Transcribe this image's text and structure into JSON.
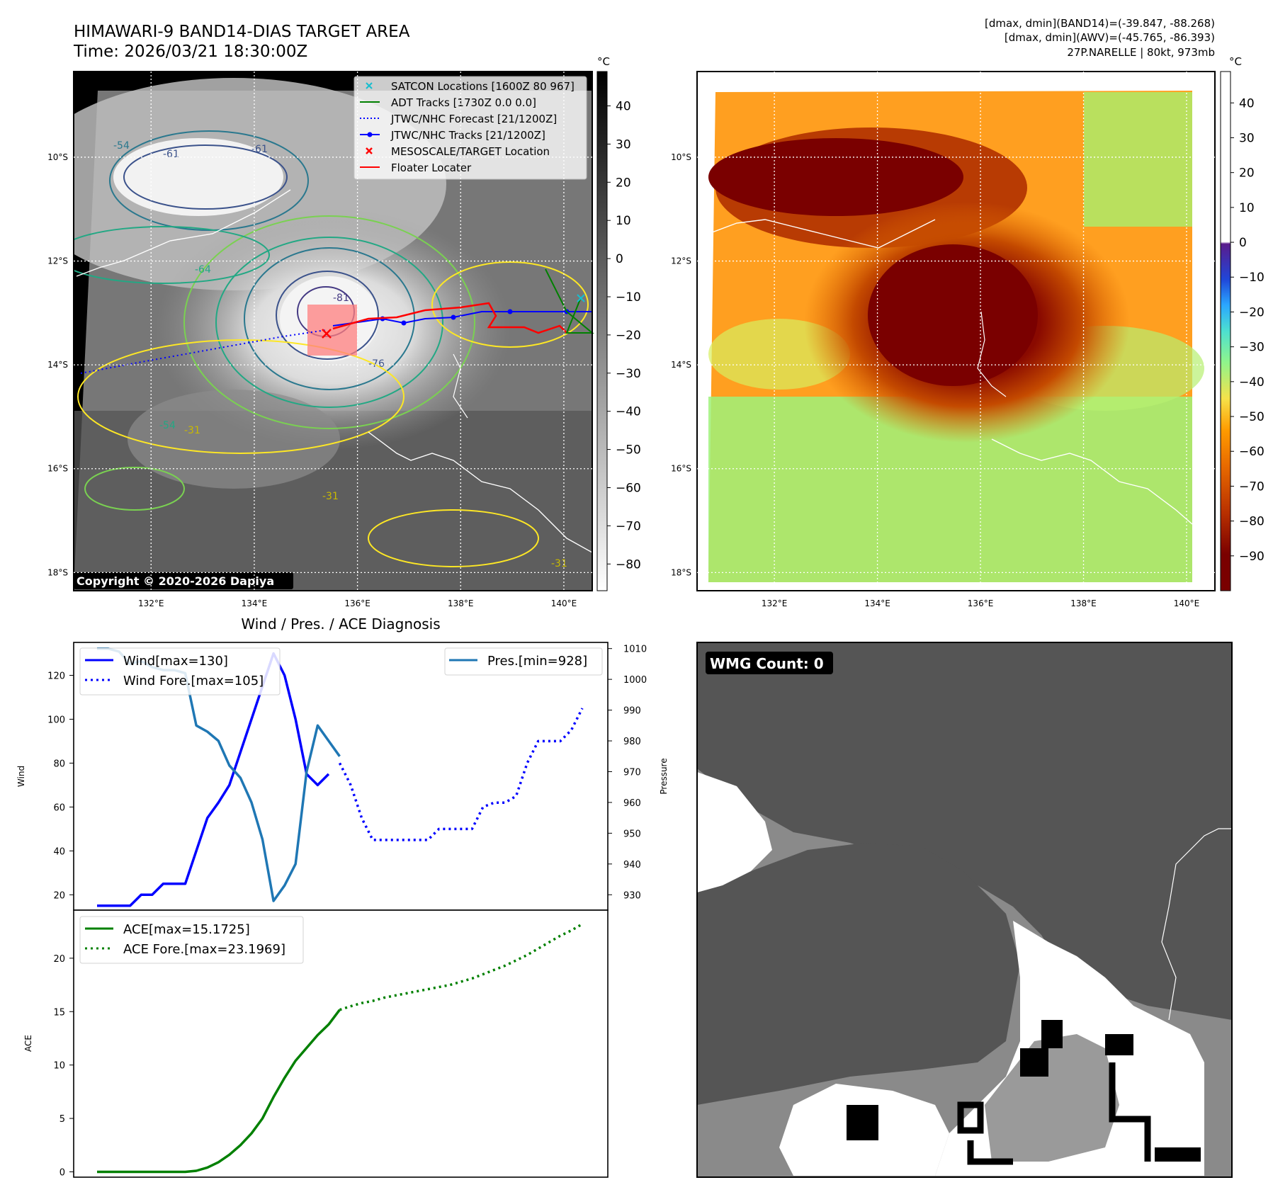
{
  "title": {
    "line1": "HIMAWARI-9 BAND14-DIAS TARGET AREA",
    "line2": "Time: 2026/03/21 18:30:00Z"
  },
  "header_right": {
    "line1": "[dmax, dmin](BAND14)=(-39.847, -88.268)",
    "line2": "[dmax, dmin](AWV)=(-45.765, -86.393)",
    "line3": "27P.NARELLE | 80kt, 973mb"
  },
  "map_axes": {
    "lat_ticks": [
      "10°S",
      "12°S",
      "14°S",
      "16°S",
      "18°S"
    ],
    "lat_values": [
      -10,
      -12,
      -14,
      -16,
      -18
    ],
    "lon_ticks": [
      "132°E",
      "134°E",
      "136°E",
      "138°E",
      "140°E"
    ],
    "lon_values": [
      132,
      134,
      136,
      138,
      140
    ],
    "lon_range": [
      130.5,
      140.55
    ],
    "lat_range": [
      -18.35,
      -8.35
    ]
  },
  "colorbar_left": {
    "unit": "°C",
    "ticks": [
      "40",
      "30",
      "20",
      "10",
      "0",
      "−10",
      "−20",
      "−30",
      "−40",
      "−50",
      "−60",
      "−70",
      "−80"
    ],
    "values": [
      40,
      30,
      20,
      10,
      0,
      -10,
      -20,
      -30,
      -40,
      -50,
      -60,
      -70,
      -80
    ],
    "range": [
      -87,
      49
    ]
  },
  "colorbar_right": {
    "unit": "°C",
    "ticks": [
      "40",
      "30",
      "20",
      "10",
      "0",
      "−10",
      "−20",
      "−30",
      "−40",
      "−50",
      "−60",
      "−70",
      "−80",
      "−90"
    ],
    "values": [
      40,
      30,
      20,
      10,
      0,
      -10,
      -20,
      -30,
      -40,
      -50,
      -60,
      -70,
      -80,
      -90
    ],
    "range": [
      -100,
      49
    ]
  },
  "legend_map": [
    {
      "label": "SATCON Locations [1600Z 80 967]",
      "marker": "x",
      "color": "#17becf"
    },
    {
      "label": "ADT Tracks [1730Z 0.0 0.0]",
      "marker": "line",
      "color": "#008000"
    },
    {
      "label": "JTWC/NHC Forecast [21/1200Z]",
      "marker": "dotted",
      "color": "#0000ff"
    },
    {
      "label": "JTWC/NHC Tracks [21/1200Z]",
      "marker": "line-dot",
      "color": "#0000ff"
    },
    {
      "label": "MESOSCALE/TARGET Location",
      "marker": "x",
      "color": "#ff0000"
    },
    {
      "label": "Floater Locater",
      "marker": "line",
      "color": "#ff0000"
    }
  ],
  "contour_labels": [
    "-54",
    "-61",
    "-64",
    "-61",
    "-81",
    "-76",
    "-54",
    "-31",
    "-31",
    "-31"
  ],
  "copyright": "Copyright © 2020-2026 Dapiya",
  "wmg_label": "WMG Count: 0",
  "chart_data": [
    {
      "type": "line",
      "title": "Wind / Pres. / ACE Diagnosis",
      "ylabel": "Wind",
      "y2label": "Pressure",
      "ylim": [
        13,
        135
      ],
      "y2lim": [
        925,
        1012
      ],
      "yticks": [
        20,
        40,
        60,
        80,
        100,
        120
      ],
      "y2ticks": [
        930,
        940,
        950,
        960,
        970,
        980,
        990,
        1000,
        1010
      ],
      "series": [
        {
          "name": "Wind[max=130]",
          "color": "#0000ff",
          "style": "solid",
          "x": [
            0,
            1,
            2,
            3,
            4,
            5,
            6,
            7,
            8,
            9,
            10,
            11,
            12,
            13,
            14,
            15,
            16,
            17,
            18,
            19,
            20,
            21
          ],
          "values": [
            15,
            15,
            15,
            15,
            20,
            20,
            25,
            25,
            25,
            40,
            55,
            62,
            70,
            85,
            100,
            115,
            130,
            120,
            100,
            75,
            70,
            75
          ]
        },
        {
          "name": "Wind Fore.[max=105]",
          "color": "#0000ff",
          "style": "dotted",
          "x": [
            22,
            23,
            24,
            25,
            26,
            27,
            28,
            29,
            30,
            31,
            32,
            33,
            34,
            35,
            36,
            37,
            38,
            39,
            40,
            41,
            42,
            43,
            44
          ],
          "values": [
            80,
            70,
            55,
            45,
            45,
            45,
            45,
            45,
            45,
            50,
            50,
            50,
            50,
            60,
            62,
            62,
            65,
            80,
            90,
            90,
            90,
            95,
            105
          ]
        },
        {
          "name": "Pres.[min=928]",
          "color": "#1f77b4",
          "style": "solid",
          "axis": "right",
          "x": [
            0,
            1,
            2,
            3,
            4,
            5,
            6,
            7,
            8,
            9,
            10,
            11,
            12,
            13,
            14,
            15,
            16,
            17,
            18,
            19,
            20,
            21,
            22
          ],
          "values": [
            1010,
            1010,
            1009,
            1005,
            1006,
            1004,
            1003,
            1003,
            1002,
            985,
            983,
            980,
            972,
            968,
            960,
            948,
            928,
            933,
            940,
            970,
            985,
            980,
            975
          ]
        }
      ]
    },
    {
      "type": "line",
      "ylabel": "ACE",
      "ylim": [
        -0.5,
        24.5
      ],
      "yticks": [
        0,
        5,
        10,
        15,
        20
      ],
      "series": [
        {
          "name": "ACE[max=15.1725]",
          "color": "#008000",
          "style": "solid",
          "x": [
            0,
            1,
            2,
            3,
            4,
            5,
            6,
            7,
            8,
            9,
            10,
            11,
            12,
            13,
            14,
            15,
            16,
            17,
            18,
            19,
            20,
            21,
            22
          ],
          "values": [
            0,
            0,
            0,
            0,
            0,
            0,
            0,
            0,
            0,
            0.1,
            0.4,
            0.9,
            1.6,
            2.5,
            3.6,
            5,
            7,
            8.8,
            10.4,
            11.6,
            12.8,
            13.8,
            15.17
          ]
        },
        {
          "name": "ACE Fore.[max=23.1969]",
          "color": "#008000",
          "style": "dotted",
          "x": [
            22,
            23,
            24,
            25,
            26,
            27,
            28,
            29,
            30,
            31,
            32,
            33,
            34,
            35,
            36,
            37,
            38,
            39,
            40,
            41,
            42,
            43,
            44
          ],
          "values": [
            15.17,
            15.5,
            15.8,
            16,
            16.3,
            16.5,
            16.7,
            16.9,
            17.1,
            17.3,
            17.5,
            17.8,
            18.1,
            18.5,
            18.9,
            19.3,
            19.8,
            20.3,
            20.9,
            21.5,
            22.1,
            22.6,
            23.2
          ]
        }
      ]
    }
  ]
}
